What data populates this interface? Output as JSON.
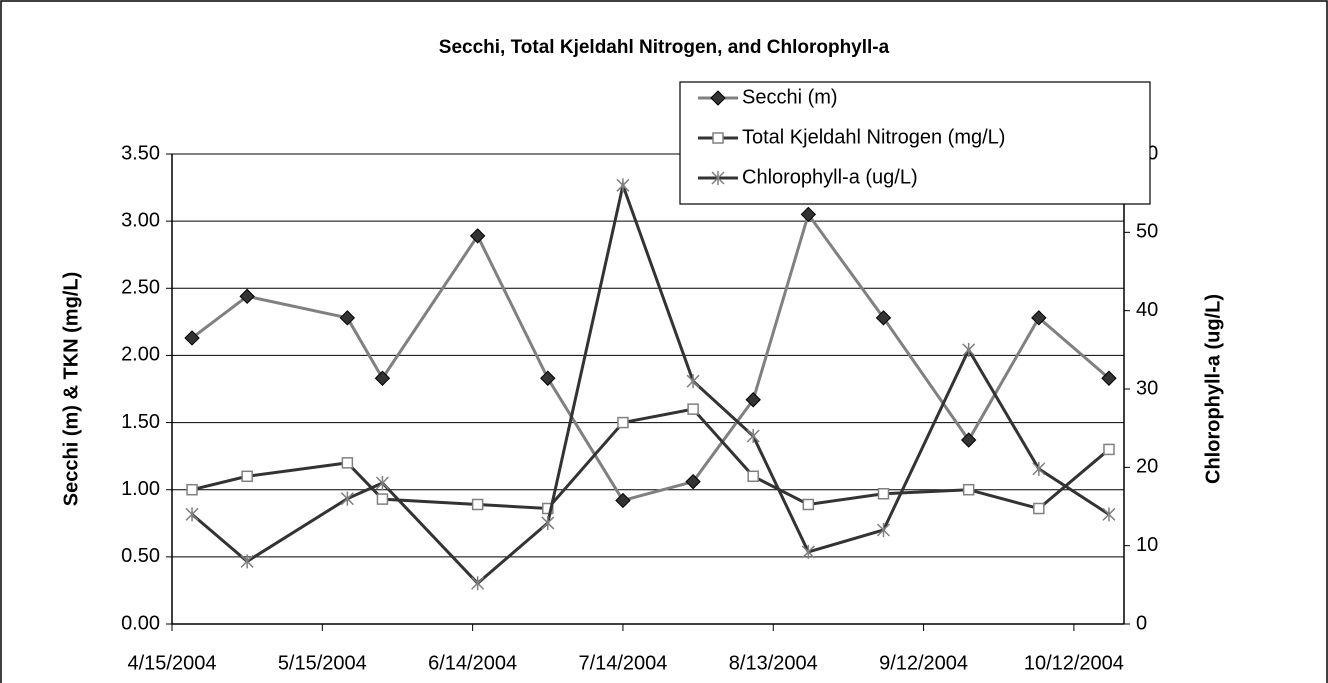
{
  "chart_data": {
    "type": "line",
    "title": "Secchi, Total Kjeldahl Nitrogen, and Chlorophyll-a",
    "y_label": "Secchi (m) & TKN (mg/L)",
    "y2_label": "Chlorophyll-a  (ug/L)",
    "x": [
      "4/19/2004",
      "4/30/2004",
      "5/20/2004",
      "5/27/2004",
      "6/15/2004",
      "6/29/2004",
      "7/14/2004",
      "7/28/2004",
      "8/9/2004",
      "8/20/2004",
      "9/4/2004",
      "9/21/2004",
      "10/5/2004",
      "10/19/2004"
    ],
    "xlim": [
      "4/15/2004",
      "10/22/2004"
    ],
    "xticks": [
      "4/15/2004",
      "5/15/2004",
      "6/14/2004",
      "7/14/2004",
      "8/13/2004",
      "9/12/2004",
      "10/12/2004"
    ],
    "ylim": [
      0,
      3.5
    ],
    "yticks": [
      {
        "value": 0,
        "label": "0.00"
      },
      {
        "value": 0.5,
        "label": "0.50"
      },
      {
        "value": 1,
        "label": "1.00"
      },
      {
        "value": 1.5,
        "label": "1.50"
      },
      {
        "value": 2,
        "label": "2.00"
      },
      {
        "value": 2.5,
        "label": "2.50"
      },
      {
        "value": 3,
        "label": "3.00"
      },
      {
        "value": 3.5,
        "label": "3.50"
      }
    ],
    "y2lim": [
      0,
      60
    ],
    "y2ticks": [
      0,
      10,
      20,
      30,
      40,
      50,
      60
    ],
    "grid": true,
    "legend": "top-right",
    "series": [
      {
        "name": "Secchi (m)",
        "color": "#808080",
        "marker": "diamond",
        "values": [
          2.13,
          2.44,
          2.28,
          1.83,
          2.89,
          1.83,
          0.92,
          1.06,
          1.67,
          3.05,
          2.28,
          1.37,
          2.28,
          1.83
        ]
      },
      {
        "name": "Total Kjeldahl Nitrogen (mg/L)",
        "color": "#333333",
        "marker": "square",
        "values": [
          1.0,
          1.1,
          1.2,
          0.93,
          0.89,
          0.86,
          1.5,
          1.6,
          1.1,
          0.89,
          0.97,
          1.0,
          0.86,
          1.3
        ]
      },
      {
        "name": "Chlorophyll-a (ug/L)",
        "color": "#333333",
        "marker": "star",
        "axis": "y2",
        "values": [
          14,
          8,
          16,
          18,
          5.2,
          12.9,
          56,
          31,
          24,
          9.2,
          12,
          35,
          19.8,
          14
        ]
      }
    ]
  }
}
